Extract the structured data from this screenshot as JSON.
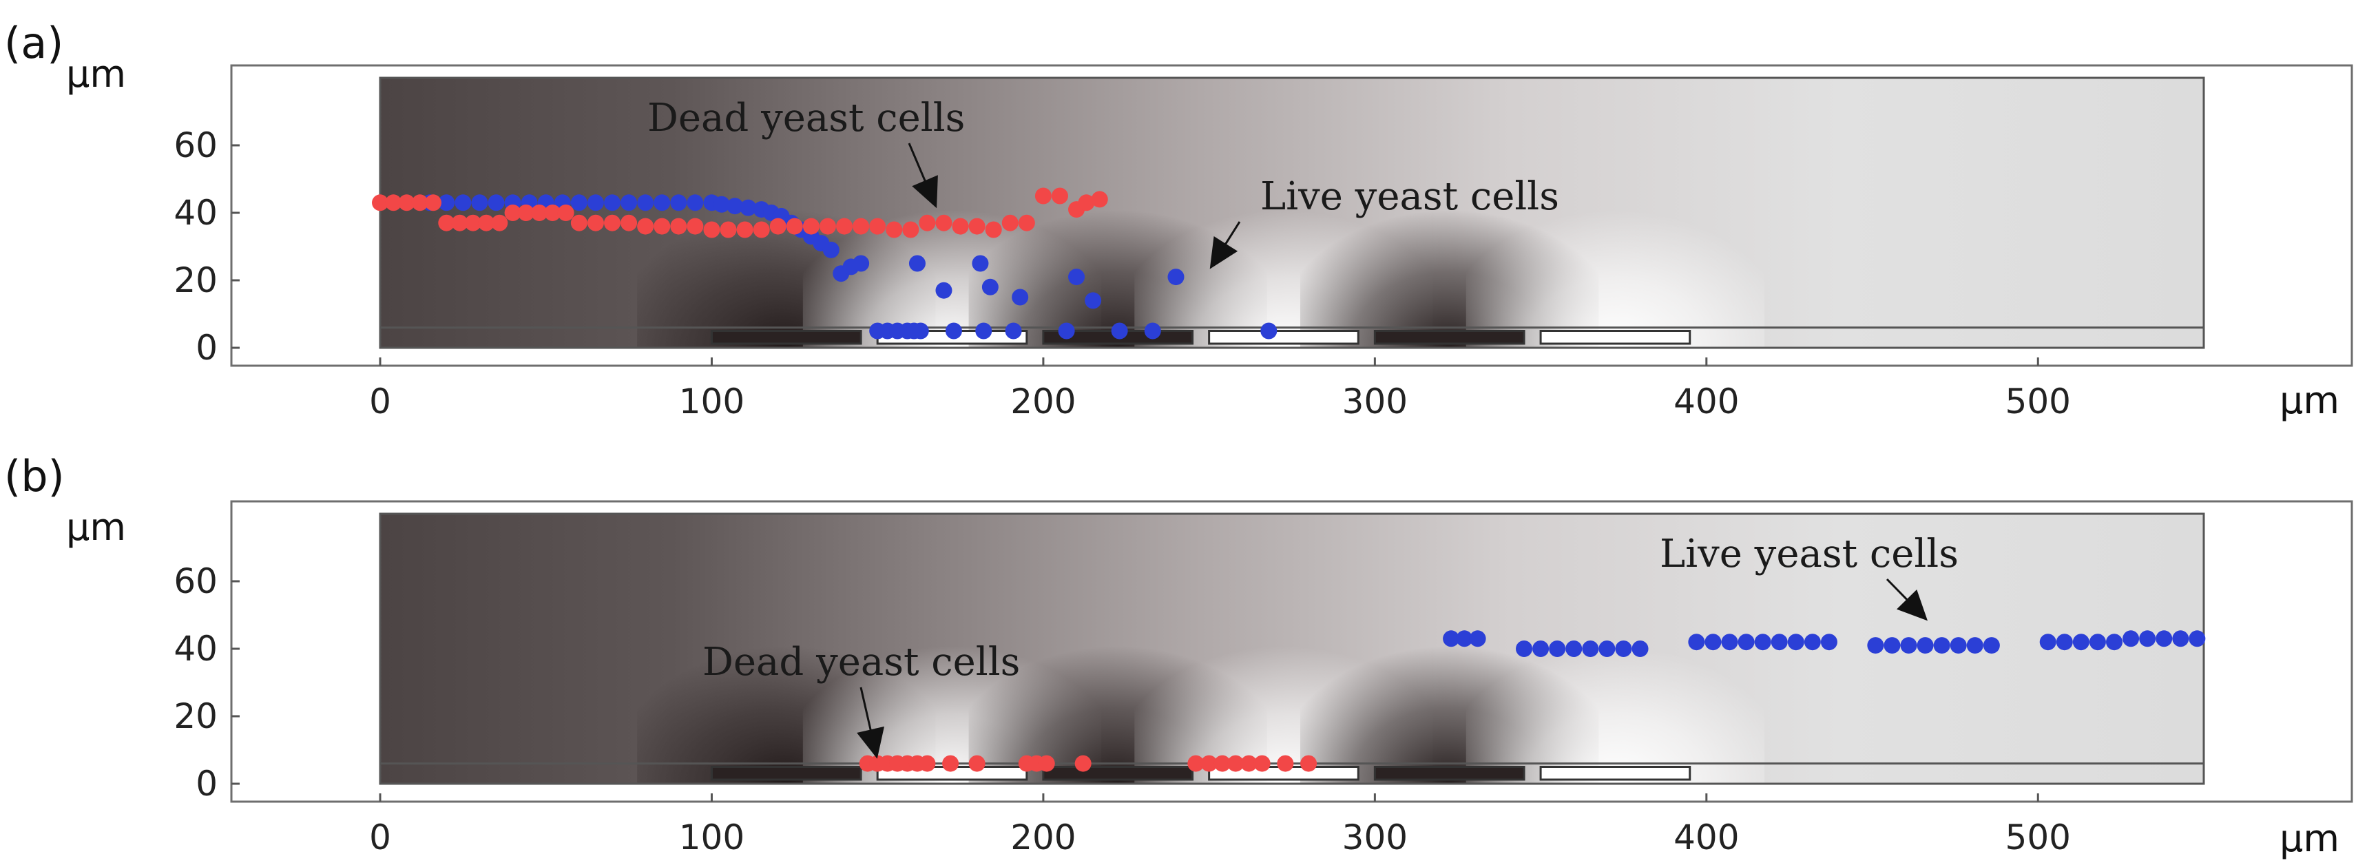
{
  "chart_data": [
    {
      "panel_label": "(a)",
      "type": "scatter",
      "y_unit_label": "μm",
      "x_unit_label": "μm",
      "xlim": [
        -45,
        590
      ],
      "ylim": [
        -3,
        83
      ],
      "x_ticks": [
        0,
        100,
        200,
        300,
        400,
        500
      ],
      "y_ticks": [
        0,
        20,
        40,
        60
      ],
      "channel": {
        "x": [
          0,
          550
        ],
        "y": [
          0,
          80
        ]
      },
      "electrodes": [
        {
          "x": [
            100,
            145
          ],
          "type": "dark"
        },
        {
          "x": [
            150,
            195
          ],
          "type": "light"
        },
        {
          "x": [
            200,
            245
          ],
          "type": "dark"
        },
        {
          "x": [
            250,
            295
          ],
          "type": "light"
        },
        {
          "x": [
            300,
            345
          ],
          "type": "dark"
        },
        {
          "x": [
            350,
            395
          ],
          "type": "light"
        }
      ],
      "series": [
        {
          "name": "Live yeast cells",
          "color": "#2b3fd6",
          "points": [
            [
              15,
              43
            ],
            [
              20,
              43
            ],
            [
              25,
              43
            ],
            [
              30,
              43
            ],
            [
              35,
              43
            ],
            [
              40,
              43
            ],
            [
              45,
              43
            ],
            [
              50,
              43
            ],
            [
              55,
              43
            ],
            [
              60,
              43
            ],
            [
              65,
              43
            ],
            [
              70,
              43
            ],
            [
              75,
              43
            ],
            [
              80,
              43
            ],
            [
              85,
              43
            ],
            [
              90,
              43
            ],
            [
              95,
              43
            ],
            [
              100,
              43
            ],
            [
              103,
              42.5
            ],
            [
              107,
              42
            ],
            [
              111,
              41.5
            ],
            [
              115,
              41
            ],
            [
              118,
              40
            ],
            [
              121,
              39
            ],
            [
              124,
              37
            ],
            [
              127,
              35
            ],
            [
              130,
              33
            ],
            [
              133,
              31
            ],
            [
              136,
              29
            ],
            [
              139,
              22
            ],
            [
              142,
              24
            ],
            [
              145,
              25
            ],
            [
              150,
              5
            ],
            [
              153,
              5
            ],
            [
              156,
              5
            ],
            [
              159,
              5
            ],
            [
              161,
              5
            ],
            [
              163,
              5
            ],
            [
              162,
              25
            ],
            [
              170,
              17
            ],
            [
              173,
              5
            ],
            [
              181,
              25
            ],
            [
              184,
              18
            ],
            [
              182,
              5
            ],
            [
              191,
              5
            ],
            [
              193,
              15
            ],
            [
              207,
              5
            ],
            [
              210,
              21
            ],
            [
              215,
              14
            ],
            [
              223,
              5
            ],
            [
              233,
              5
            ],
            [
              240,
              21
            ],
            [
              268,
              5
            ]
          ]
        },
        {
          "name": "Dead yeast cells",
          "color": "#f24747",
          "points": [
            [
              0,
              43
            ],
            [
              4,
              43
            ],
            [
              8,
              43
            ],
            [
              12,
              43
            ],
            [
              16,
              43
            ],
            [
              20,
              37
            ],
            [
              24,
              37
            ],
            [
              28,
              37
            ],
            [
              32,
              37
            ],
            [
              36,
              37
            ],
            [
              40,
              40
            ],
            [
              44,
              40
            ],
            [
              48,
              40
            ],
            [
              52,
              40
            ],
            [
              56,
              40
            ],
            [
              60,
              37
            ],
            [
              65,
              37
            ],
            [
              70,
              37
            ],
            [
              75,
              37
            ],
            [
              80,
              36
            ],
            [
              85,
              36
            ],
            [
              90,
              36
            ],
            [
              95,
              36
            ],
            [
              100,
              35
            ],
            [
              105,
              35
            ],
            [
              110,
              35
            ],
            [
              115,
              35
            ],
            [
              120,
              36
            ],
            [
              125,
              36
            ],
            [
              130,
              36
            ],
            [
              135,
              36
            ],
            [
              140,
              36
            ],
            [
              145,
              36
            ],
            [
              150,
              36
            ],
            [
              155,
              35
            ],
            [
              160,
              35
            ],
            [
              165,
              37
            ],
            [
              170,
              37
            ],
            [
              175,
              36
            ],
            [
              180,
              36
            ],
            [
              185,
              35
            ],
            [
              190,
              37
            ],
            [
              195,
              37
            ],
            [
              200,
              45
            ],
            [
              205,
              45
            ],
            [
              210,
              41
            ],
            [
              213,
              43
            ],
            [
              217,
              44
            ]
          ]
        }
      ],
      "annotations": [
        {
          "text": "Dead yeast cells",
          "target": [
            168,
            41
          ]
        },
        {
          "text": "Live yeast cells",
          "target": [
            250,
            23
          ]
        }
      ]
    },
    {
      "panel_label": "(b)",
      "type": "scatter",
      "y_unit_label": "μm",
      "x_unit_label": "μm",
      "xlim": [
        -45,
        590
      ],
      "ylim": [
        -3,
        83
      ],
      "x_ticks": [
        0,
        100,
        200,
        300,
        400,
        500
      ],
      "y_ticks": [
        0,
        20,
        40,
        60
      ],
      "channel": {
        "x": [
          0,
          550
        ],
        "y": [
          0,
          80
        ]
      },
      "electrodes": [
        {
          "x": [
            100,
            145
          ],
          "type": "dark"
        },
        {
          "x": [
            150,
            195
          ],
          "type": "light"
        },
        {
          "x": [
            200,
            245
          ],
          "type": "dark"
        },
        {
          "x": [
            250,
            295
          ],
          "type": "light"
        },
        {
          "x": [
            300,
            345
          ],
          "type": "dark"
        },
        {
          "x": [
            350,
            395
          ],
          "type": "light"
        }
      ],
      "series": [
        {
          "name": "Live yeast cells",
          "color": "#2b3fd6",
          "points": [
            [
              323,
              43
            ],
            [
              327,
              43
            ],
            [
              331,
              43
            ],
            [
              345,
              40
            ],
            [
              350,
              40
            ],
            [
              355,
              40
            ],
            [
              360,
              40
            ],
            [
              365,
              40
            ],
            [
              370,
              40
            ],
            [
              375,
              40
            ],
            [
              380,
              40
            ],
            [
              397,
              42
            ],
            [
              402,
              42
            ],
            [
              407,
              42
            ],
            [
              412,
              42
            ],
            [
              417,
              42
            ],
            [
              422,
              42
            ],
            [
              427,
              42
            ],
            [
              432,
              42
            ],
            [
              437,
              42
            ],
            [
              451,
              41
            ],
            [
              456,
              41
            ],
            [
              461,
              41
            ],
            [
              466,
              41
            ],
            [
              471,
              41
            ],
            [
              476,
              41
            ],
            [
              481,
              41
            ],
            [
              486,
              41
            ],
            [
              503,
              42
            ],
            [
              508,
              42
            ],
            [
              513,
              42
            ],
            [
              518,
              42
            ],
            [
              523,
              42
            ],
            [
              528,
              43
            ],
            [
              533,
              43
            ],
            [
              538,
              43
            ],
            [
              543,
              43
            ],
            [
              548,
              43
            ]
          ]
        },
        {
          "name": "Dead yeast cells",
          "color": "#f24747",
          "points": [
            [
              147,
              6
            ],
            [
              150,
              6
            ],
            [
              153,
              6
            ],
            [
              156,
              6
            ],
            [
              159,
              6
            ],
            [
              162,
              6
            ],
            [
              165,
              6
            ],
            [
              172,
              6
            ],
            [
              180,
              6
            ],
            [
              195,
              6
            ],
            [
              198,
              6
            ],
            [
              201,
              6
            ],
            [
              212,
              6
            ],
            [
              246,
              6
            ],
            [
              250,
              6
            ],
            [
              254,
              6
            ],
            [
              258,
              6
            ],
            [
              262,
              6
            ],
            [
              266,
              6
            ],
            [
              273,
              6
            ],
            [
              280,
              6
            ]
          ]
        }
      ],
      "annotations": [
        {
          "text": "Dead yeast cells",
          "target": [
            150,
            7
          ]
        },
        {
          "text": "Live yeast cells",
          "target": [
            467,
            48
          ]
        }
      ]
    }
  ]
}
